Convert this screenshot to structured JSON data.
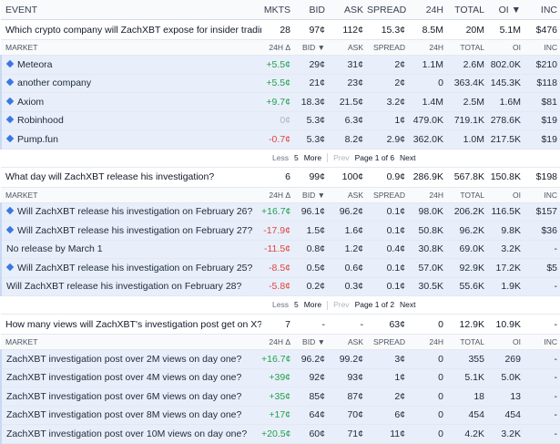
{
  "header": [
    "EVENT",
    "MKTS",
    "BID",
    "ASK",
    "SPREAD",
    "24H",
    "TOTAL",
    "OI ▼",
    "INC"
  ],
  "events": [
    {
      "title": "Which crypto company will ZachXBT expose for insider trading?",
      "cells": [
        "28",
        "97¢",
        "112¢",
        "15.3¢",
        "8.5M",
        "20M",
        "5.1M",
        "$476"
      ],
      "columns": [
        "MARKET",
        "24H Δ",
        "BID ▼",
        "ASK",
        "SPREAD",
        "24H",
        "TOTAL",
        "OI",
        "INC"
      ],
      "markets": [
        {
          "name": "Meteora",
          "diamond": true,
          "cells": [
            "+5.5¢",
            "29¢",
            "31¢",
            "2¢",
            "1.1M",
            "2.6M",
            "802.0K",
            "$210"
          ]
        },
        {
          "name": "another company",
          "diamond": true,
          "cells": [
            "+5.5¢",
            "21¢",
            "23¢",
            "2¢",
            "0",
            "363.4K",
            "145.3K",
            "$118"
          ]
        },
        {
          "name": "Axiom",
          "diamond": true,
          "cells": [
            "+9.7¢",
            "18.3¢",
            "21.5¢",
            "3.2¢",
            "1.4M",
            "2.5M",
            "1.6M",
            "$81"
          ]
        },
        {
          "name": "Robinhood",
          "diamond": true,
          "cells": [
            "0¢",
            "5.3¢",
            "6.3¢",
            "1¢",
            "479.0K",
            "719.1K",
            "278.6K",
            "$19"
          ]
        },
        {
          "name": "Pump.fun",
          "diamond": true,
          "cells": [
            "-0.7¢",
            "5.3¢",
            "8.2¢",
            "2.9¢",
            "362.0K",
            "1.0M",
            "217.5K",
            "$19"
          ]
        }
      ],
      "pager": {
        "less": "Less",
        "count": "5",
        "more": "More",
        "prev": "Prev",
        "page": "Page 1 of 6",
        "next": "Next"
      }
    },
    {
      "title": "What day will ZachXBT release his investigation?",
      "cells": [
        "6",
        "99¢",
        "100¢",
        "0.9¢",
        "286.9K",
        "567.8K",
        "150.8K",
        "$198"
      ],
      "columns": [
        "MARKET",
        "24H Δ",
        "BID ▼",
        "ASK",
        "SPREAD",
        "24H",
        "TOTAL",
        "OI",
        "INC"
      ],
      "markets": [
        {
          "name": "Will ZachXBT release his investigation on February 26?",
          "diamond": true,
          "cells": [
            "+16.7¢",
            "96.1¢",
            "96.2¢",
            "0.1¢",
            "98.0K",
            "206.2K",
            "116.5K",
            "$157"
          ]
        },
        {
          "name": "Will ZachXBT release his investigation on February 27?",
          "diamond": true,
          "cells": [
            "-17.9¢",
            "1.5¢",
            "1.6¢",
            "0.1¢",
            "50.8K",
            "96.2K",
            "9.8K",
            "$36"
          ]
        },
        {
          "name": "No release by March 1",
          "diamond": false,
          "cells": [
            "-11.5¢",
            "0.8¢",
            "1.2¢",
            "0.4¢",
            "30.8K",
            "69.0K",
            "3.2K",
            "-"
          ]
        },
        {
          "name": "Will ZachXBT release his investigation on February 25?",
          "diamond": true,
          "cells": [
            "-8.5¢",
            "0.5¢",
            "0.6¢",
            "0.1¢",
            "57.0K",
            "92.9K",
            "17.2K",
            "$5"
          ]
        },
        {
          "name": "Will ZachXBT release his investigation on February 28?",
          "diamond": false,
          "cells": [
            "-5.8¢",
            "0.2¢",
            "0.3¢",
            "0.1¢",
            "30.5K",
            "55.6K",
            "1.9K",
            "-"
          ]
        }
      ],
      "pager": {
        "less": "Less",
        "count": "5",
        "more": "More",
        "prev": "Prev",
        "page": "Page 1 of 2",
        "next": "Next"
      }
    },
    {
      "title": "How many views will ZachXBT's investigation post get on X?",
      "cells": [
        "7",
        "-",
        "-",
        "63¢",
        "0",
        "12.9K",
        "10.9K",
        "-"
      ],
      "columns": [
        "MARKET",
        "24H Δ",
        "BID ▼",
        "ASK",
        "SPREAD",
        "24H",
        "TOTAL",
        "OI",
        "INC"
      ],
      "markets": [
        {
          "name": "ZachXBT investigation post over 2M views on day one?",
          "diamond": false,
          "cells": [
            "+16.7¢",
            "96.2¢",
            "99.2¢",
            "3¢",
            "0",
            "355",
            "269",
            "-"
          ]
        },
        {
          "name": "ZachXBT investigation post over 4M views on day one?",
          "diamond": false,
          "cells": [
            "+39¢",
            "92¢",
            "93¢",
            "1¢",
            "0",
            "5.1K",
            "5.0K",
            "-"
          ]
        },
        {
          "name": "ZachXBT investigation post over 6M views on day one?",
          "diamond": false,
          "cells": [
            "+35¢",
            "85¢",
            "87¢",
            "2¢",
            "0",
            "18",
            "13",
            "-"
          ]
        },
        {
          "name": "ZachXBT investigation post over 8M views on day one?",
          "diamond": false,
          "cells": [
            "+17¢",
            "64¢",
            "70¢",
            "6¢",
            "0",
            "454",
            "454",
            "-"
          ]
        },
        {
          "name": "ZachXBT investigation post over 10M views on day one?",
          "diamond": false,
          "cells": [
            "+20.5¢",
            "60¢",
            "71¢",
            "11¢",
            "0",
            "4.2K",
            "3.2K",
            "-"
          ]
        }
      ]
    }
  ]
}
